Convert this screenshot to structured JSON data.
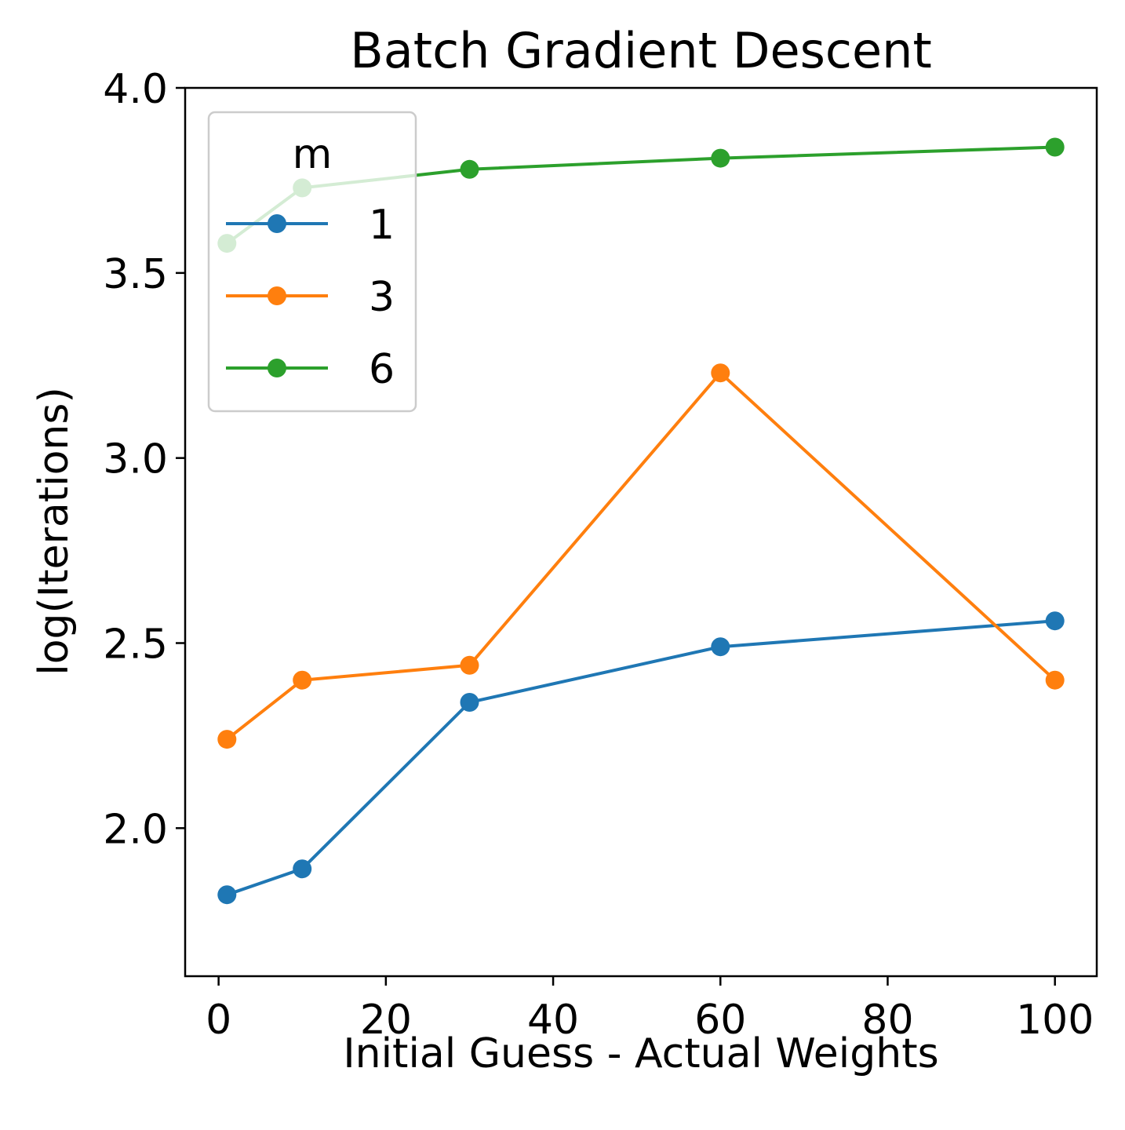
{
  "chart_data": {
    "type": "line",
    "title": "Batch Gradient Descent",
    "xlabel": "Initial Guess - Actual Weights",
    "ylabel": "log(Iterations)",
    "x": [
      1,
      10,
      30,
      60,
      100
    ],
    "xlim": [
      -4,
      105
    ],
    "ylim": [
      1.6,
      4.0
    ],
    "xticks": [
      0,
      20,
      40,
      60,
      80,
      100
    ],
    "yticks": [
      2.0,
      2.5,
      3.0,
      3.5,
      4.0
    ],
    "xtick_labels": [
      "0",
      "20",
      "40",
      "60",
      "80",
      "100"
    ],
    "ytick_labels": [
      "2.0",
      "2.5",
      "3.0",
      "3.5",
      "4.0"
    ],
    "grid": false,
    "legend": {
      "title": "m",
      "position": "upper-left"
    },
    "series": [
      {
        "name": "1",
        "color": "#1f77b4",
        "marker": "circle",
        "values": [
          1.82,
          1.89,
          2.34,
          2.49,
          2.56
        ]
      },
      {
        "name": "3",
        "color": "#ff7f0e",
        "marker": "circle",
        "values": [
          2.24,
          2.4,
          2.44,
          3.23,
          2.4
        ]
      },
      {
        "name": "6",
        "color": "#2ca02c",
        "marker": "circle",
        "values": [
          3.58,
          3.73,
          3.78,
          3.81,
          3.84
        ]
      }
    ]
  }
}
